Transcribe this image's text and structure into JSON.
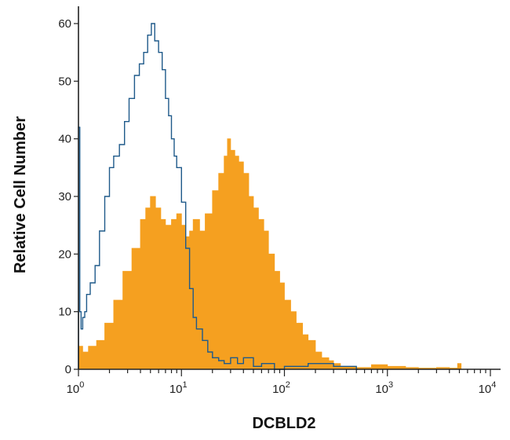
{
  "chart_data": {
    "type": "area",
    "xlabel": "DCBLD2",
    "ylabel": "Relative Cell Number",
    "x_scale": "log",
    "xlim": [
      1,
      10000
    ],
    "ylim": [
      0,
      63
    ],
    "x_ticks": [
      {
        "value": 1,
        "base": "10",
        "exp": "0"
      },
      {
        "value": 10,
        "base": "10",
        "exp": "1"
      },
      {
        "value": 100,
        "base": "10",
        "exp": "2"
      },
      {
        "value": 1000,
        "base": "10",
        "exp": "3"
      },
      {
        "value": 10000,
        "base": "10",
        "exp": "4"
      }
    ],
    "y_ticks": [
      "0",
      "10",
      "20",
      "30",
      "40",
      "50",
      "60"
    ],
    "grid": false,
    "legend": "none",
    "series": [
      {
        "style": "filled",
        "color": "#f5a020",
        "x": [
          1,
          1.1,
          1.25,
          1.5,
          1.8,
          2.2,
          2.7,
          3.3,
          4,
          4.5,
          5,
          5.6,
          6.3,
          7,
          8,
          9,
          10,
          11,
          12,
          13,
          15,
          17,
          20,
          23,
          26,
          28,
          30,
          33,
          36,
          40,
          45,
          50,
          56,
          63,
          70,
          80,
          90,
          100,
          115,
          130,
          150,
          170,
          200,
          230,
          270,
          300,
          350,
          400,
          500,
          700,
          1000,
          1500,
          2000,
          3000,
          4000,
          4800,
          5200
        ],
        "y": [
          4,
          3,
          4,
          5,
          8,
          12,
          17,
          21,
          26,
          28,
          30,
          28,
          26,
          25,
          26,
          27,
          25,
          23,
          24,
          26,
          24,
          27,
          31,
          34,
          37,
          40,
          38,
          37,
          36,
          34,
          30,
          28,
          26,
          24,
          20,
          17,
          15,
          12,
          10,
          8,
          6,
          5,
          3,
          2,
          1.5,
          1,
          0.5,
          0.5,
          0.3,
          0.8,
          0.5,
          0.3,
          0.2,
          0.3,
          0.2,
          1,
          0
        ]
      },
      {
        "style": "outline",
        "color": "#1f5a8a",
        "x": [
          1,
          1.03,
          1.06,
          1.1,
          1.15,
          1.2,
          1.3,
          1.45,
          1.6,
          1.8,
          2,
          2.2,
          2.5,
          2.8,
          3.1,
          3.5,
          3.9,
          4.3,
          4.7,
          5.1,
          5.5,
          6,
          6.5,
          7,
          7.5,
          8,
          8.5,
          9,
          10,
          11,
          12,
          13,
          14,
          16,
          18,
          20,
          23,
          26,
          30,
          35,
          40,
          50,
          60,
          70,
          80,
          100,
          130,
          170,
          220,
          300,
          400,
          500
        ],
        "y": [
          42,
          10,
          7,
          9,
          10,
          13,
          15,
          18,
          24,
          30,
          35,
          37,
          39,
          43,
          47,
          51,
          53,
          55,
          58,
          60,
          57,
          55,
          52,
          47,
          44,
          40,
          37,
          35,
          29,
          21,
          14,
          9,
          7,
          5,
          3,
          2,
          1.5,
          1,
          2,
          1,
          2,
          0.5,
          1,
          1,
          0,
          0.5,
          0.5,
          1,
          1,
          0.5,
          0.5,
          0
        ]
      }
    ]
  }
}
